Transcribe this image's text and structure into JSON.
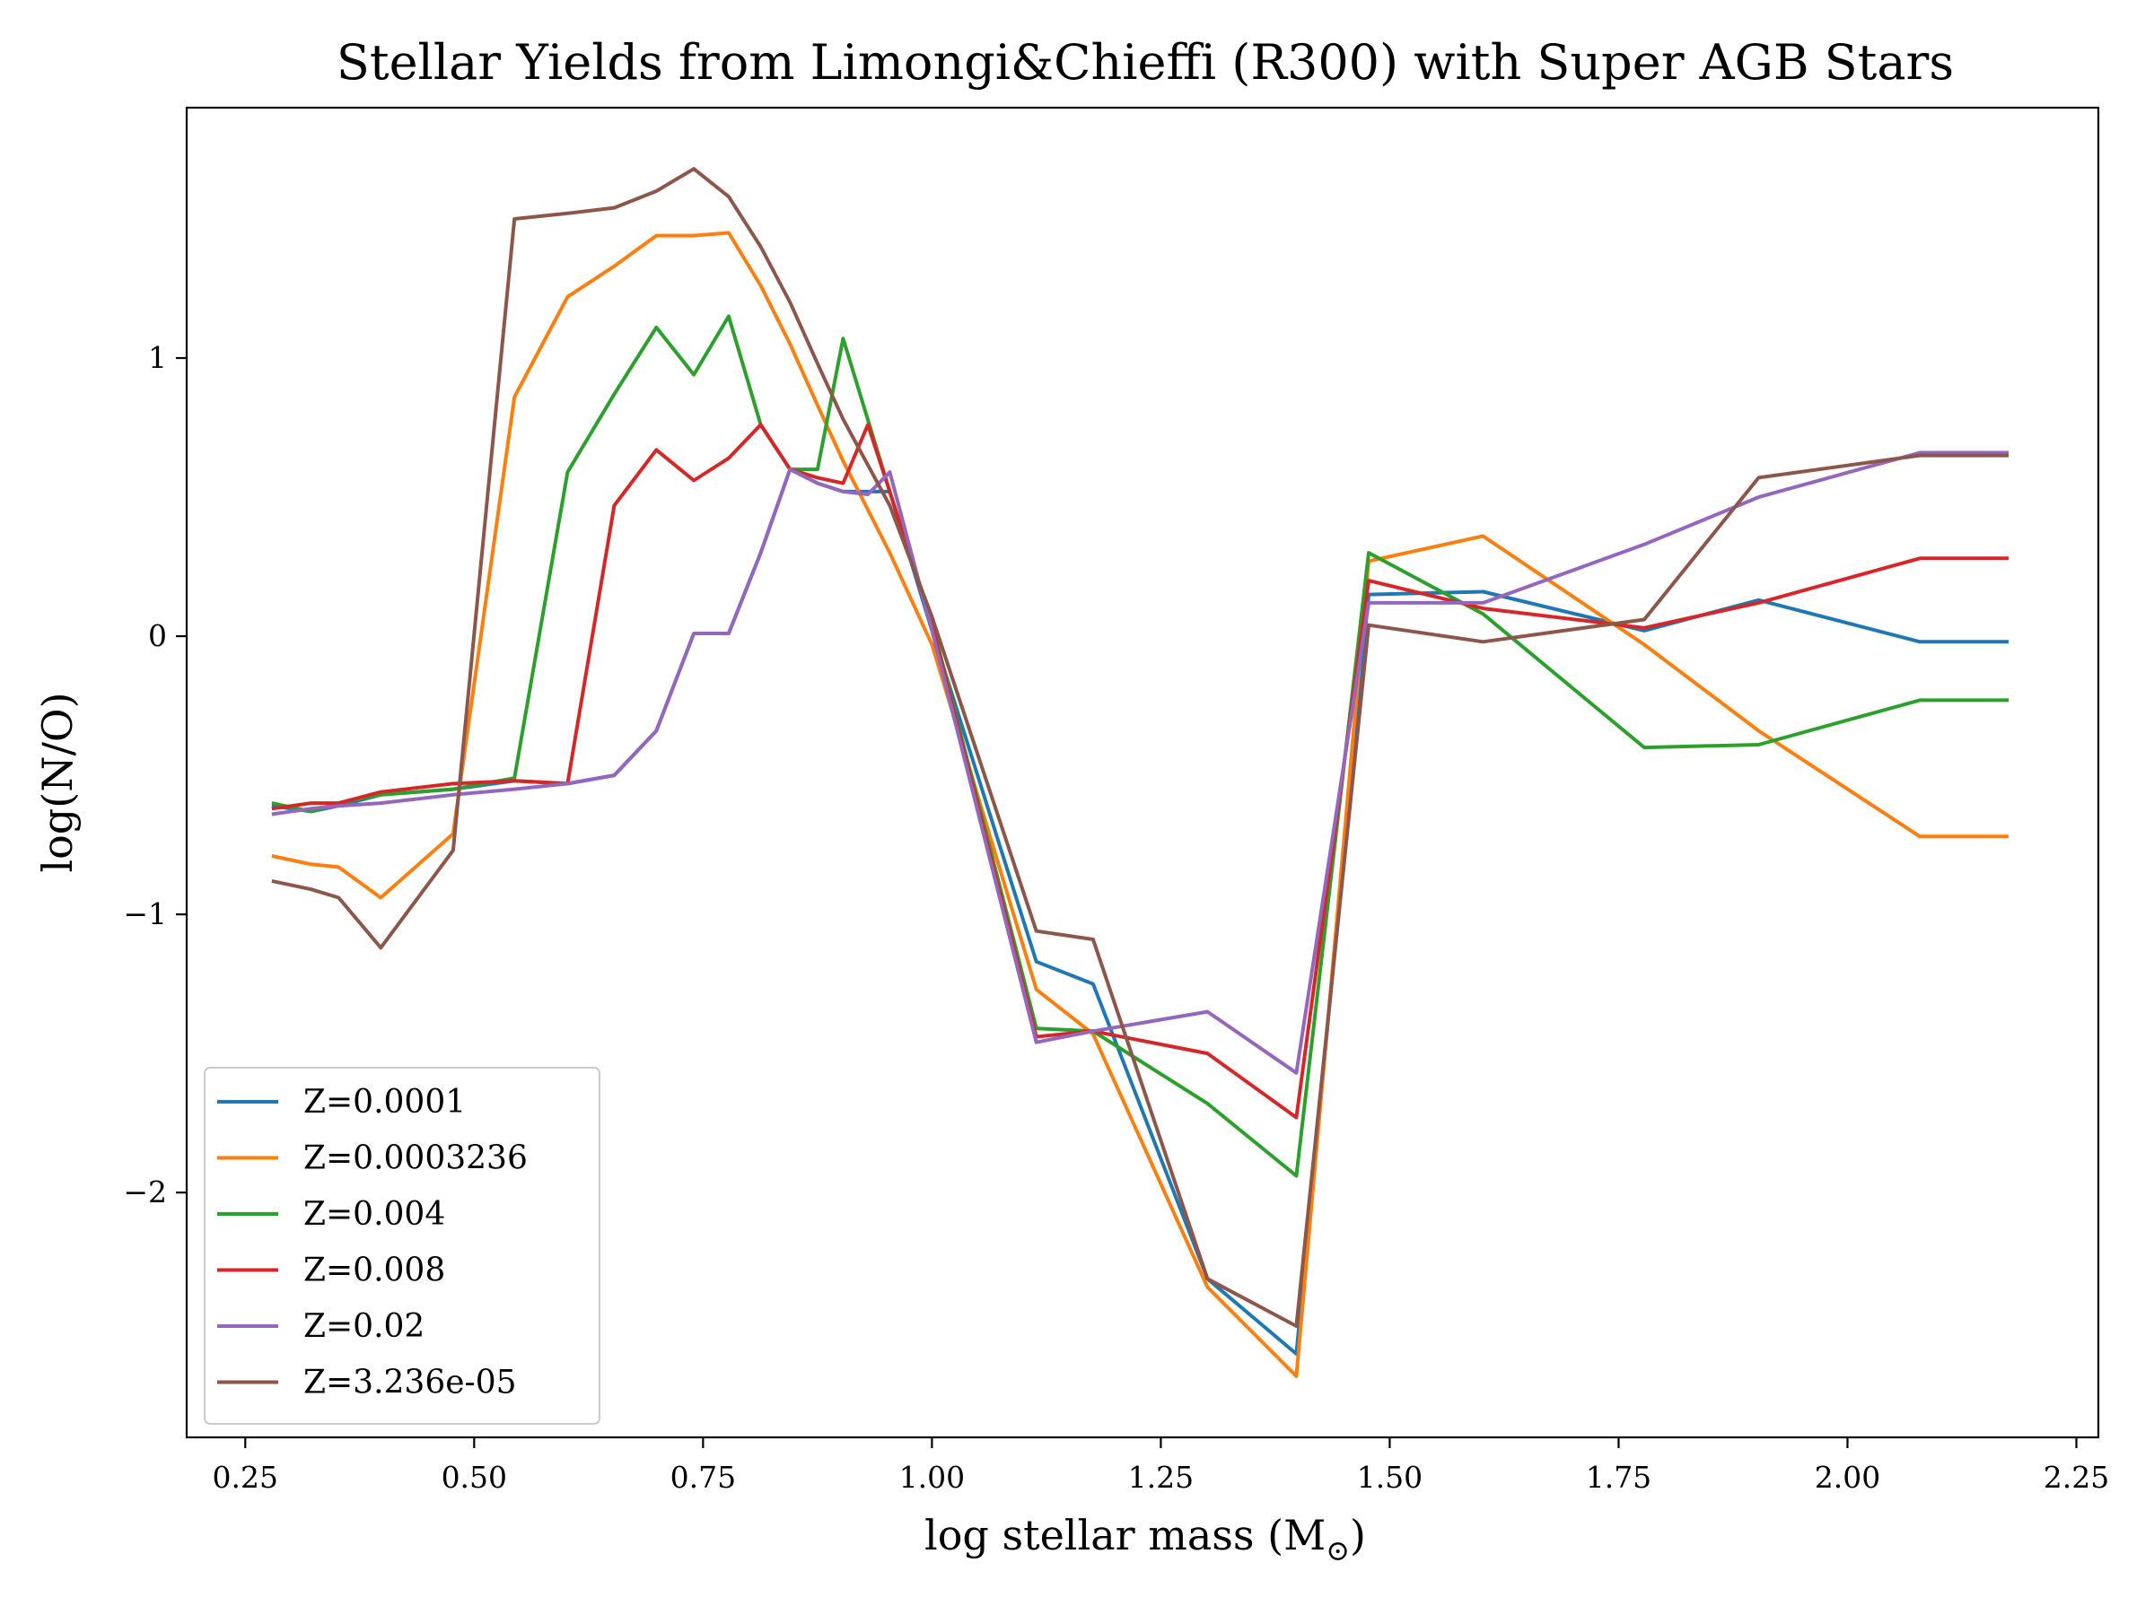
{
  "chart_data": {
    "type": "line",
    "title": "Stellar Yields from Limongi&Chieffi (R300) with Super AGB Stars",
    "xlabel": "log stellar mass (M",
    "xlabel_sub": "⊙",
    "xlabel_close": ")",
    "ylabel": "log(N/O)",
    "xlim": [
      0.186,
      2.274
    ],
    "ylim": [
      -2.88,
      1.9
    ],
    "xticks": [
      0.25,
      0.5,
      0.75,
      1.0,
      1.25,
      1.5,
      1.75,
      2.0,
      2.25
    ],
    "xtick_labels": [
      "0.25",
      "0.50",
      "0.75",
      "1.00",
      "1.25",
      "1.50",
      "1.75",
      "2.00",
      "2.25"
    ],
    "yticks": [
      -2,
      -1,
      0,
      1
    ],
    "ytick_labels": [
      "−2",
      "−1",
      "0",
      "1"
    ],
    "grid": false,
    "legend_position": "lower-left",
    "series": [
      {
        "name": "Z=0.0001",
        "color": "#1f77b4",
        "x": [
          0.279,
          0.322,
          0.352,
          0.398,
          0.477,
          0.544,
          0.602,
          0.653,
          0.699,
          0.74,
          0.778,
          0.813,
          0.845,
          0.875,
          0.903,
          0.954,
          1.0,
          1.114,
          1.176,
          1.301,
          1.398,
          1.477,
          1.602,
          1.778,
          1.903,
          2.079,
          2.176
        ],
        "y": [
          -0.61,
          -0.63,
          -0.61,
          -0.57,
          -0.55,
          -0.52,
          -0.53,
          -0.5,
          -0.34,
          0.01,
          0.01,
          0.3,
          0.6,
          0.55,
          0.52,
          0.52,
          0.02,
          -1.17,
          -1.25,
          -2.31,
          -2.58,
          0.15,
          0.16,
          0.02,
          0.13,
          -0.02,
          -0.02
        ]
      },
      {
        "name": "Z=0.0003236",
        "color": "#ff7f0e",
        "x": [
          0.279,
          0.322,
          0.352,
          0.398,
          0.477,
          0.544,
          0.602,
          0.653,
          0.699,
          0.74,
          0.778,
          0.813,
          0.845,
          0.875,
          0.903,
          0.954,
          1.0,
          1.114,
          1.176,
          1.301,
          1.398,
          1.477,
          1.602,
          1.778,
          1.903,
          2.079,
          2.176
        ],
        "y": [
          -0.79,
          -0.82,
          -0.83,
          -0.94,
          -0.71,
          0.86,
          1.22,
          1.33,
          1.44,
          1.44,
          1.45,
          1.26,
          1.05,
          0.83,
          0.63,
          0.3,
          -0.03,
          -1.27,
          -1.43,
          -2.34,
          -2.66,
          0.27,
          0.36,
          -0.03,
          -0.34,
          -0.72,
          -0.72
        ]
      },
      {
        "name": "Z=0.004",
        "color": "#2ca02c",
        "x": [
          0.279,
          0.322,
          0.352,
          0.398,
          0.477,
          0.544,
          0.602,
          0.653,
          0.699,
          0.74,
          0.778,
          0.813,
          0.845,
          0.875,
          0.903,
          0.954,
          1.0,
          1.114,
          1.176,
          1.301,
          1.398,
          1.477,
          1.602,
          1.778,
          1.903,
          2.079,
          2.176
        ],
        "y": [
          -0.6,
          -0.63,
          -0.6,
          -0.57,
          -0.55,
          -0.51,
          0.59,
          0.87,
          1.11,
          0.94,
          1.15,
          0.76,
          0.6,
          0.6,
          1.07,
          0.52,
          0.05,
          -1.41,
          -1.42,
          -1.68,
          -1.94,
          0.3,
          0.08,
          -0.4,
          -0.39,
          -0.23,
          -0.23
        ]
      },
      {
        "name": "Z=0.008",
        "color": "#d62728",
        "x": [
          0.279,
          0.322,
          0.352,
          0.398,
          0.477,
          0.544,
          0.602,
          0.653,
          0.699,
          0.74,
          0.778,
          0.813,
          0.845,
          0.875,
          0.903,
          0.93,
          0.954,
          1.0,
          1.114,
          1.176,
          1.301,
          1.398,
          1.477,
          1.602,
          1.778,
          1.903,
          2.079,
          2.176
        ],
        "y": [
          -0.62,
          -0.6,
          -0.6,
          -0.56,
          -0.53,
          -0.52,
          -0.53,
          0.47,
          0.67,
          0.56,
          0.64,
          0.76,
          0.6,
          0.57,
          0.55,
          0.76,
          0.52,
          0.04,
          -1.44,
          -1.42,
          -1.5,
          -1.73,
          0.2,
          0.1,
          0.03,
          0.12,
          0.28,
          0.28
        ]
      },
      {
        "name": "Z=0.02",
        "color": "#9467bd",
        "x": [
          0.279,
          0.322,
          0.352,
          0.398,
          0.477,
          0.544,
          0.602,
          0.653,
          0.699,
          0.74,
          0.778,
          0.813,
          0.845,
          0.875,
          0.903,
          0.93,
          0.954,
          1.0,
          1.114,
          1.176,
          1.301,
          1.398,
          1.477,
          1.602,
          1.778,
          1.903,
          2.079,
          2.176
        ],
        "y": [
          -0.64,
          -0.62,
          -0.61,
          -0.6,
          -0.57,
          -0.55,
          -0.53,
          -0.5,
          -0.34,
          0.01,
          0.01,
          0.3,
          0.6,
          0.55,
          0.52,
          0.51,
          0.59,
          0.02,
          -1.46,
          -1.42,
          -1.35,
          -1.57,
          0.12,
          0.12,
          0.33,
          0.5,
          0.66,
          0.66
        ]
      },
      {
        "name": "Z=3.236e-05",
        "color": "#8c564b",
        "x": [
          0.279,
          0.322,
          0.352,
          0.398,
          0.477,
          0.544,
          0.602,
          0.653,
          0.699,
          0.74,
          0.778,
          0.813,
          0.845,
          0.875,
          0.903,
          0.954,
          1.0,
          1.114,
          1.176,
          1.301,
          1.398,
          1.477,
          1.602,
          1.778,
          1.903,
          2.079,
          2.176
        ],
        "y": [
          -0.88,
          -0.91,
          -0.94,
          -1.12,
          -0.77,
          1.5,
          1.52,
          1.54,
          1.6,
          1.68,
          1.58,
          1.4,
          1.2,
          0.98,
          0.78,
          0.47,
          0.07,
          -1.06,
          -1.09,
          -2.31,
          -2.48,
          0.04,
          -0.02,
          0.06,
          0.57,
          0.65,
          0.65
        ]
      }
    ]
  }
}
